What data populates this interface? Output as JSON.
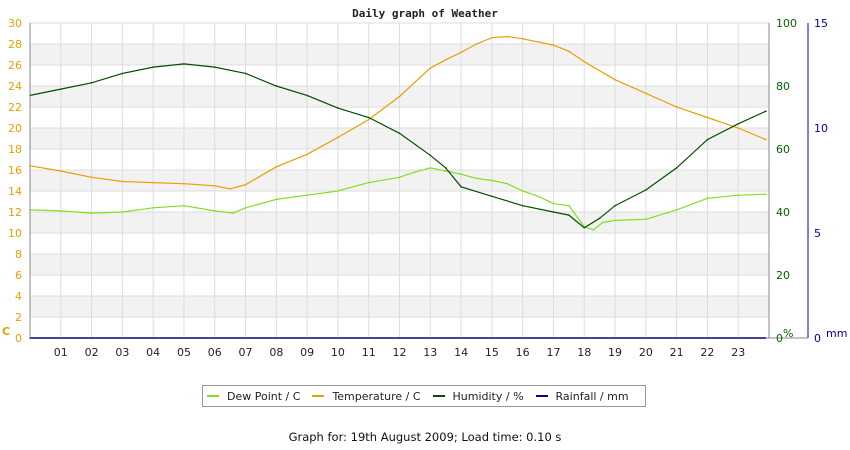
{
  "chart_data": {
    "type": "line",
    "title": "Daily graph of Weather",
    "x_tick_labels": [
      "01",
      "02",
      "03",
      "04",
      "05",
      "06",
      "07",
      "08",
      "09",
      "10",
      "11",
      "12",
      "13",
      "14",
      "15",
      "16",
      "17",
      "18",
      "19",
      "20",
      "21",
      "22",
      "23"
    ],
    "xlim": [
      0,
      24
    ],
    "axes": {
      "left": {
        "unit": "C",
        "ylim": [
          0,
          30
        ],
        "ticks": [
          0,
          2,
          4,
          6,
          8,
          10,
          12,
          14,
          16,
          18,
          20,
          22,
          24,
          26,
          28,
          30
        ],
        "color": "#e6a000"
      },
      "humidity": {
        "unit": "%",
        "ylim": [
          0,
          100
        ],
        "ticks": [
          0,
          20,
          40,
          60,
          80,
          100
        ],
        "color": "#006600"
      },
      "rain": {
        "unit": "mm",
        "ylim": [
          0,
          15
        ],
        "ticks": [
          0,
          5,
          10,
          15
        ],
        "color": "#0000aa"
      }
    },
    "grid": true,
    "series": [
      {
        "name": "Dew Point / C",
        "axis": "left",
        "color": "#80e020",
        "x": [
          0,
          1,
          2,
          3,
          4,
          5,
          6,
          6.6,
          7,
          8,
          9,
          10,
          11,
          12,
          12.5,
          13,
          13.5,
          14,
          14.5,
          15,
          15.5,
          16,
          16.5,
          17,
          17.5,
          18,
          18.3,
          18.6,
          19,
          20,
          21,
          22,
          23,
          23.9
        ],
        "y": [
          12.2,
          12.1,
          11.9,
          12.0,
          12.4,
          12.6,
          12.1,
          11.9,
          12.4,
          13.2,
          13.6,
          14.0,
          14.8,
          15.3,
          15.8,
          16.2,
          15.9,
          15.6,
          15.2,
          15.0,
          14.7,
          14.0,
          13.5,
          12.8,
          12.6,
          10.6,
          10.3,
          11.0,
          11.2,
          11.3,
          12.2,
          13.3,
          13.6,
          13.7
        ]
      },
      {
        "name": "Temperature / C",
        "axis": "left",
        "color": "#e6a000",
        "x": [
          0,
          1,
          2,
          3,
          4,
          5,
          6,
          6.5,
          7,
          8,
          9,
          10,
          11,
          12,
          13,
          13.5,
          14,
          14.5,
          15,
          15.5,
          16,
          17,
          17.5,
          18,
          19,
          20,
          21,
          22,
          23,
          23.9
        ],
        "y": [
          16.4,
          15.9,
          15.3,
          14.9,
          14.8,
          14.7,
          14.5,
          14.2,
          14.6,
          16.3,
          17.5,
          19.1,
          20.8,
          23.0,
          25.7,
          26.5,
          27.2,
          28.0,
          28.6,
          28.7,
          28.5,
          27.9,
          27.3,
          26.3,
          24.6,
          23.3,
          22.0,
          21.0,
          20.0,
          18.9
        ]
      },
      {
        "name": "Humidity / %",
        "axis": "humidity",
        "color": "#005000",
        "x": [
          0,
          1,
          2,
          3,
          4,
          5,
          6,
          7,
          8,
          9,
          10,
          11,
          12,
          13,
          13.5,
          14,
          15,
          16,
          17,
          17.5,
          18,
          18.5,
          19,
          20,
          21,
          22,
          23,
          23.9
        ],
        "y": [
          77,
          79,
          81,
          84,
          86,
          87,
          86,
          84,
          80,
          77,
          73,
          70,
          65,
          58,
          54,
          48,
          45,
          42,
          40,
          39,
          35,
          38,
          42,
          47,
          54,
          63,
          68,
          72
        ]
      },
      {
        "name": "Rainfall / mm",
        "axis": "rain",
        "color": "#0000aa",
        "x": [
          0,
          23.9
        ],
        "y": [
          0,
          0
        ]
      }
    ],
    "footer": "Graph for: 19th August 2009; Load time: 0.10 s"
  }
}
